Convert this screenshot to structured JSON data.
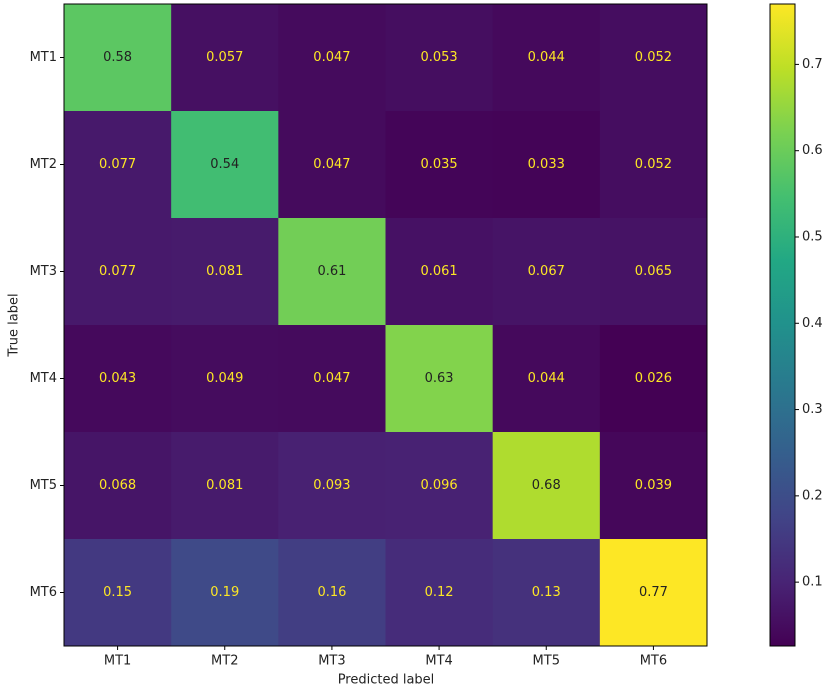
{
  "chart_data": {
    "type": "heatmap",
    "xlabel": "Predicted label",
    "ylabel": "True label",
    "x_categories": [
      "MT1",
      "MT2",
      "MT3",
      "MT4",
      "MT5",
      "MT6"
    ],
    "y_categories": [
      "MT1",
      "MT2",
      "MT3",
      "MT4",
      "MT5",
      "MT6"
    ],
    "values": [
      [
        0.58,
        0.057,
        0.047,
        0.053,
        0.044,
        0.052
      ],
      [
        0.077,
        0.54,
        0.047,
        0.035,
        0.033,
        0.052
      ],
      [
        0.077,
        0.081,
        0.61,
        0.061,
        0.067,
        0.065
      ],
      [
        0.043,
        0.049,
        0.047,
        0.63,
        0.044,
        0.026
      ],
      [
        0.068,
        0.081,
        0.093,
        0.096,
        0.68,
        0.039
      ],
      [
        0.15,
        0.19,
        0.16,
        0.12,
        0.13,
        0.77
      ]
    ],
    "colormap": "viridis",
    "colorbar_lim": [
      0.026,
      0.77
    ],
    "colorbar_ticks": [
      0.1,
      0.2,
      0.3,
      0.4,
      0.5,
      0.6,
      0.7
    ]
  }
}
